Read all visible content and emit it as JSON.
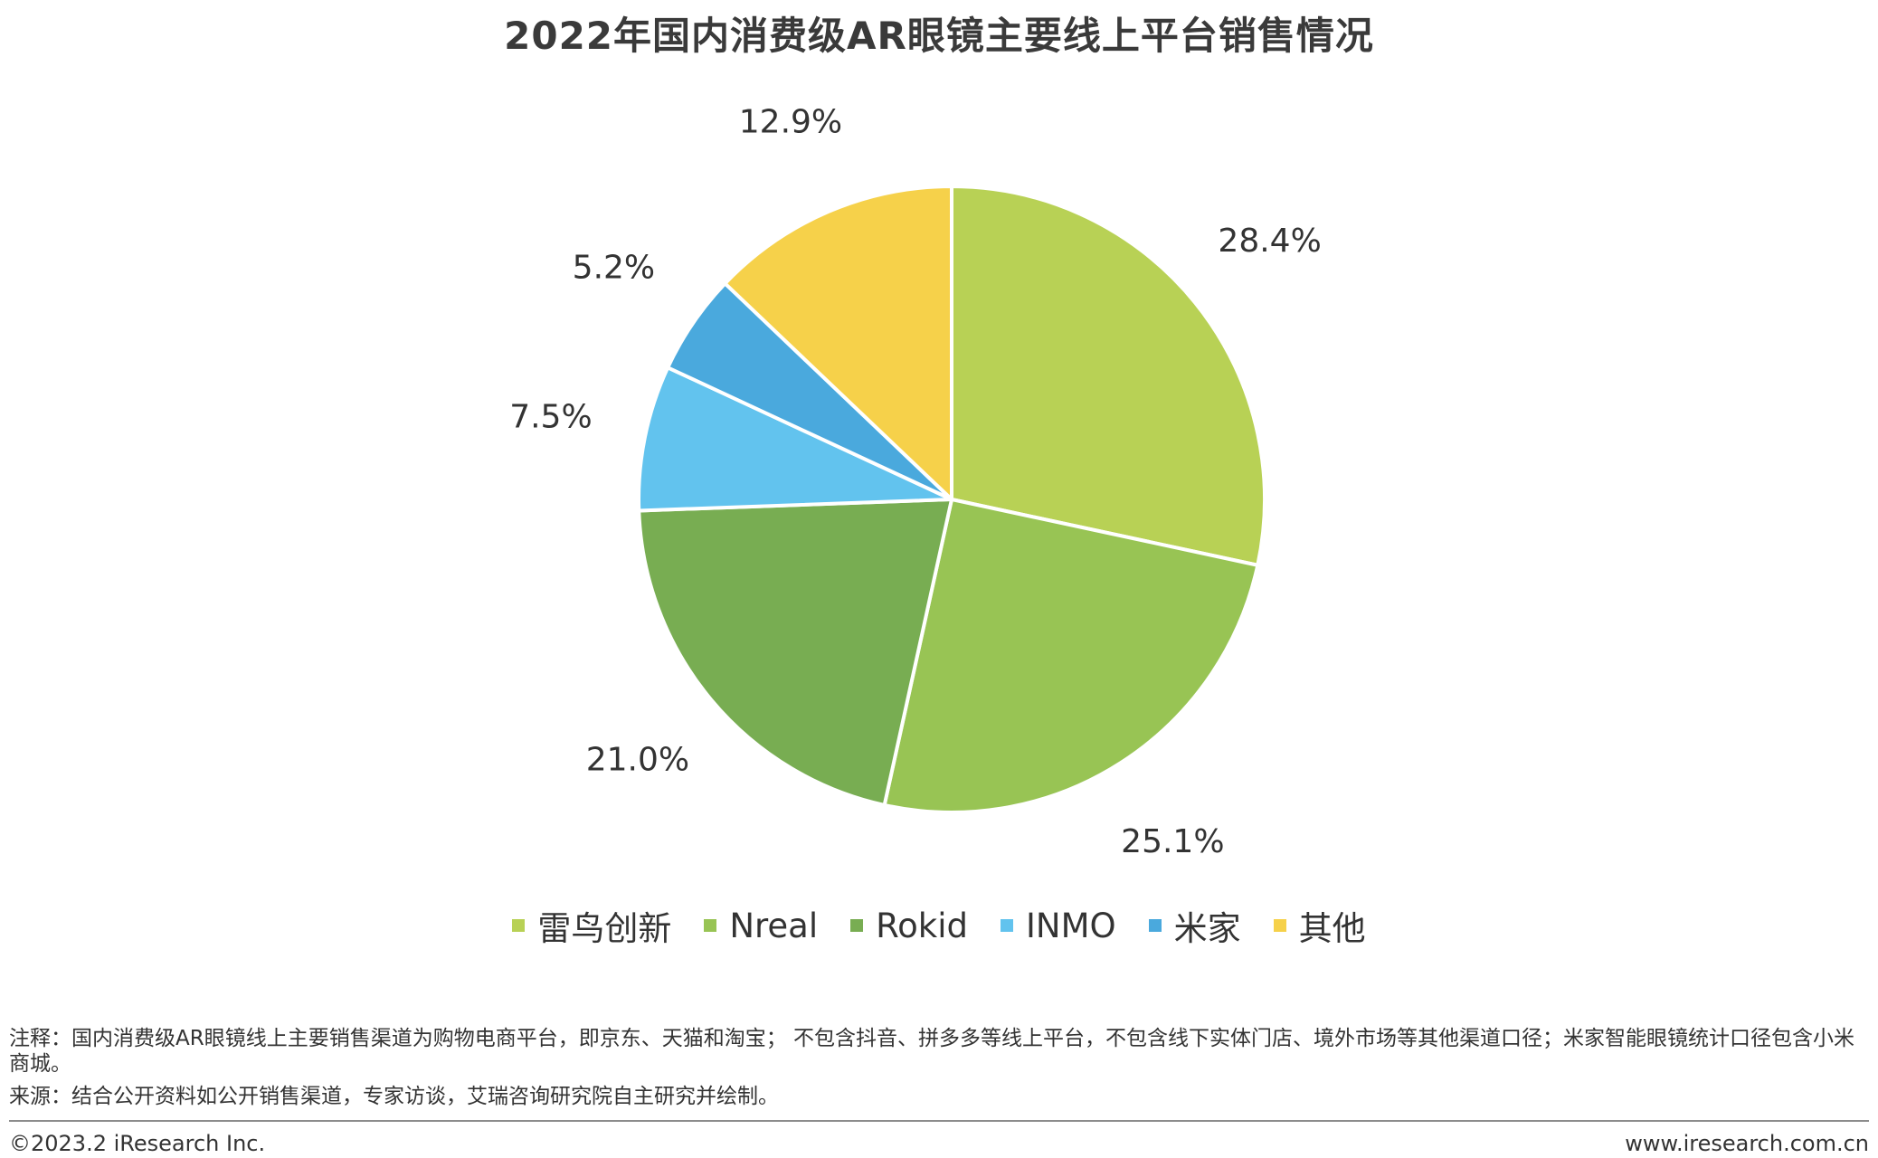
{
  "chart_data": {
    "type": "pie",
    "title": "2022年国内消费级AR眼镜主要线上平台销售情况",
    "categories": [
      "雷鸟创新",
      "Nreal",
      "Rokid",
      "INMO",
      "米家",
      "其他"
    ],
    "values": [
      28.4,
      25.1,
      21.0,
      7.5,
      5.2,
      12.9
    ],
    "labels": [
      "28.4%",
      "25.1%",
      "21.0%",
      "7.5%",
      "5.2%",
      "12.9%"
    ],
    "colors": [
      "#b8d155",
      "#98c454",
      "#78ad52",
      "#62c3ee",
      "#4aa9dd",
      "#f6d14a"
    ],
    "unit": "%",
    "legend_position": "bottom",
    "start": "12 o'clock, clockwise"
  },
  "notes": {
    "note": "注释：国内消费级AR眼镜线上主要销售渠道为购物电商平台，即京东、天猫和淘宝； 不包含抖音、拼多多等线上平台，不包含线下实体门店、境外市场等其他渠道口径；米家智能眼镜统计口径包含小米商城。",
    "source": "来源：结合公开资料如公开销售渠道，专家访谈，艾瑞咨询研究院自主研究并绘制。"
  },
  "footer": {
    "copyright": "©2023.2 iResearch Inc.",
    "website": "www.iresearch.com.cn"
  }
}
